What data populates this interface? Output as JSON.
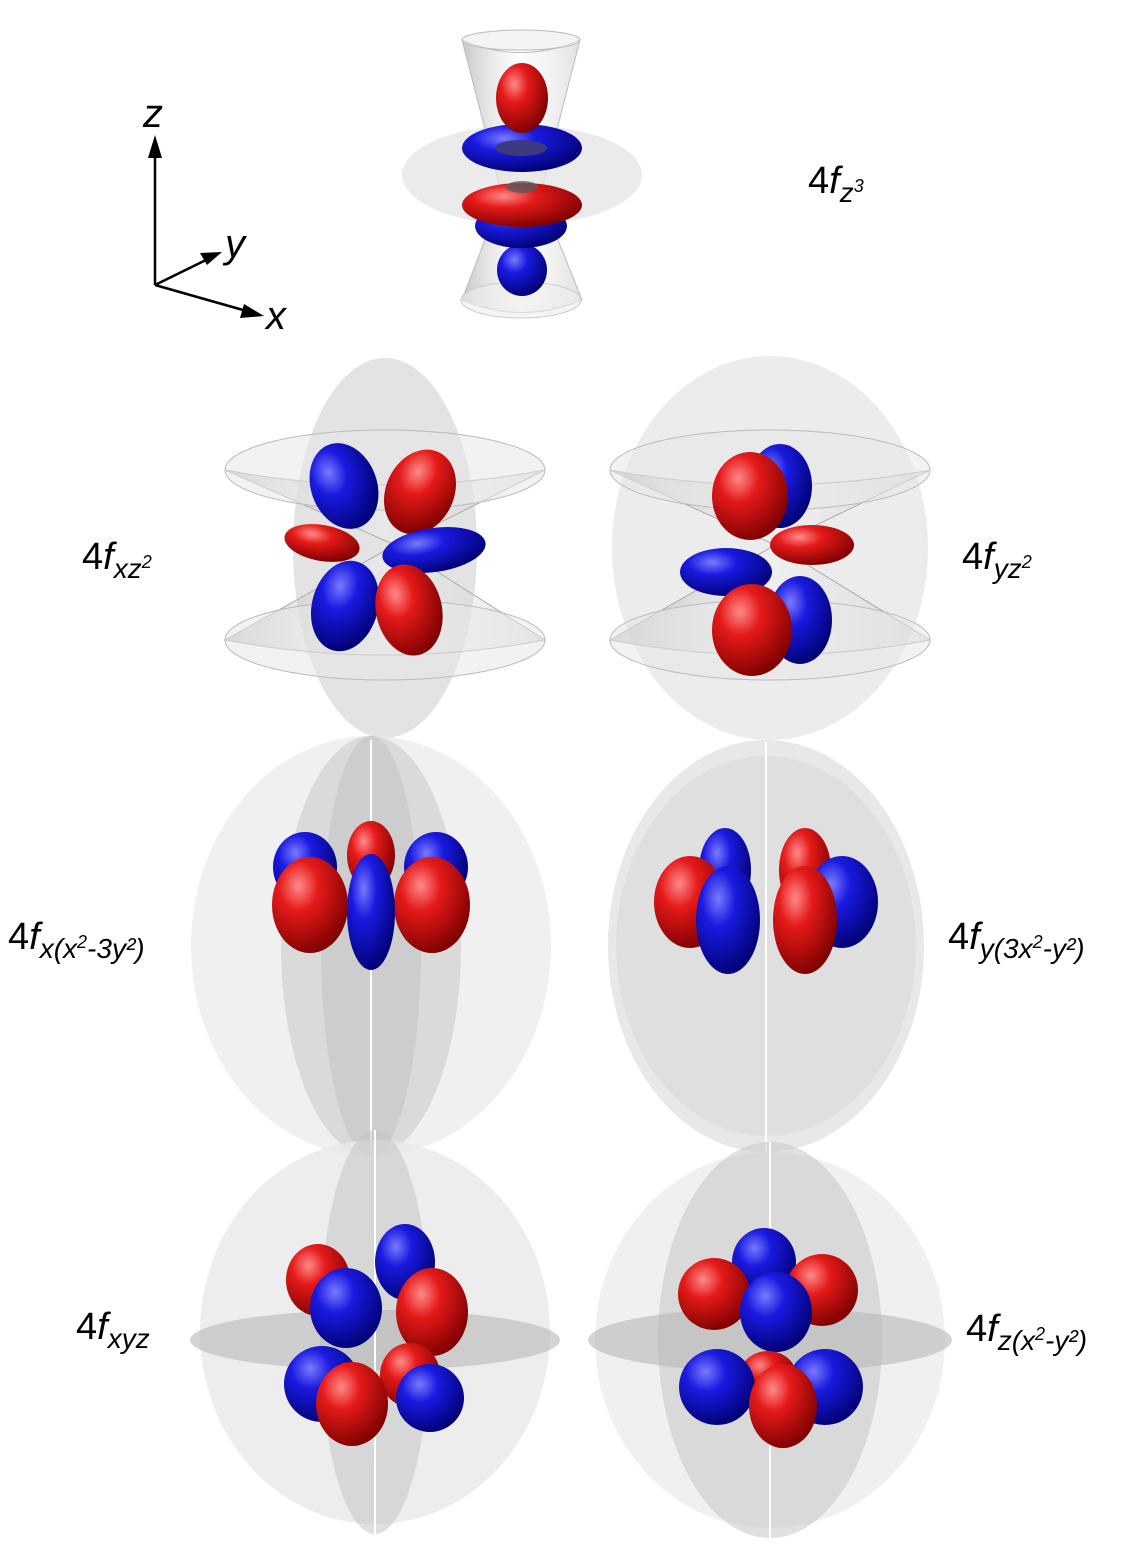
{
  "axes": {
    "z": "z",
    "y": "y",
    "x": "x"
  },
  "orbitals": [
    {
      "id": "fz3",
      "prefix": "4",
      "f": "f",
      "sub": "z",
      "sup": "3",
      "tail": ""
    },
    {
      "id": "fxz2",
      "prefix": "4",
      "f": "f",
      "sub": "xz",
      "sup": "2",
      "tail": ""
    },
    {
      "id": "fyz2",
      "prefix": "4",
      "f": "f",
      "sub": "yz",
      "sup": "2",
      "tail": ""
    },
    {
      "id": "fx",
      "prefix": "4",
      "f": "f",
      "sub": "x(x",
      "sup": "2",
      "tail": "-3y²)"
    },
    {
      "id": "fy",
      "prefix": "4",
      "f": "f",
      "sub": "y(3x",
      "sup": "2",
      "tail": "-y²)"
    },
    {
      "id": "fxyz",
      "prefix": "4",
      "f": "f",
      "sub": "xyz",
      "sup": "",
      "tail": ""
    },
    {
      "id": "fz",
      "prefix": "4",
      "f": "f",
      "sub": "z(x",
      "sup": "2",
      "tail": "-y²)"
    }
  ],
  "colors": {
    "positive": "#e01010",
    "negative": "#1010d8",
    "surface": "#c8c8c8"
  }
}
